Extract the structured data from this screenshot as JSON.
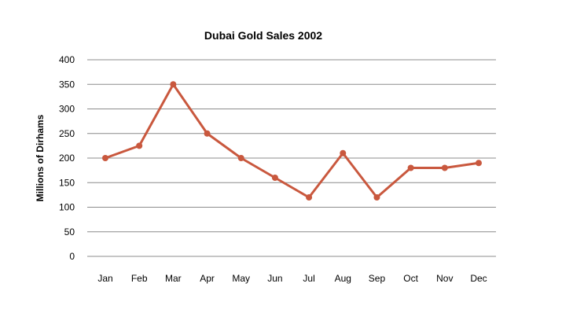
{
  "chart_data": {
    "type": "line",
    "title": "Dubai Gold Sales 2002",
    "xlabel": "",
    "ylabel": "Millions of Dirhams",
    "categories": [
      "Jan",
      "Feb",
      "Mar",
      "Apr",
      "May",
      "Jun",
      "Jul",
      "Aug",
      "Sep",
      "Oct",
      "Nov",
      "Dec"
    ],
    "series": [
      {
        "values": [
          200,
          225,
          350,
          250,
          200,
          160,
          120,
          210,
          120,
          180,
          180,
          190
        ],
        "color": "#c9583e"
      }
    ],
    "ylim": [
      0,
      400
    ],
    "yticks": [
      "0",
      "50",
      "100",
      "150",
      "200",
      "250",
      "300",
      "350",
      "400"
    ],
    "grid": true,
    "gridline_color": "#8c8c8c",
    "legend": "none"
  }
}
